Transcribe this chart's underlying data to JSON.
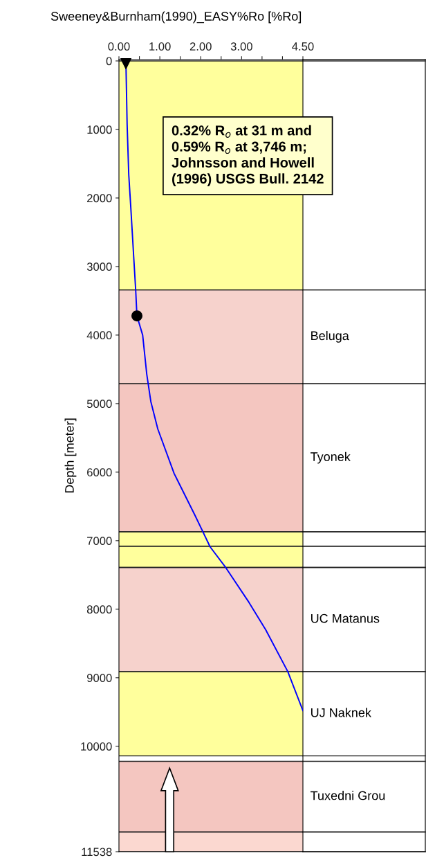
{
  "chart_data": {
    "type": "line",
    "title": "Sweeney&Burnham(1990)_EASY%Ro [%Ro]",
    "ylabel": "Depth [meter]",
    "xlim": [
      0,
      4.5
    ],
    "xticks": [
      {
        "value": 0,
        "label": "0.00"
      },
      {
        "value": 0.5,
        "label": null
      },
      {
        "value": 1,
        "label": "1.00"
      },
      {
        "value": 1.5,
        "label": null
      },
      {
        "value": 2,
        "label": "2.00"
      },
      {
        "value": 2.5,
        "label": null
      },
      {
        "value": 3,
        "label": "3.00"
      },
      {
        "value": 3.5,
        "label": null
      },
      {
        "value": 4,
        "label": null
      },
      {
        "value": 4.5,
        "label": "4.50"
      }
    ],
    "ylim": [
      11538,
      -20
    ],
    "yticks": [
      0,
      1000,
      2000,
      3000,
      4000,
      5000,
      6000,
      7000,
      8000,
      9000,
      10000,
      11538
    ],
    "grid": false,
    "series": [
      {
        "color": "#0000ff",
        "marker": "none",
        "x": [
          0.17,
          0.2,
          0.24,
          0.29,
          0.37,
          0.41,
          0.44,
          0.58,
          0.68,
          0.78,
          0.95,
          1.35,
          1.86,
          2.23,
          2.61,
          3.18,
          3.59,
          4.13,
          4.5
        ],
        "values": [
          0,
          930,
          1660,
          2140,
          2950,
          3350,
          3720,
          4000,
          4570,
          4970,
          5370,
          6020,
          6630,
          7090,
          7390,
          7900,
          8300,
          8910,
          9480
        ]
      },
      {
        "type": "scatter",
        "color": "#000000",
        "marker": "triangle",
        "x": [
          0.17
        ],
        "values": [
          40
        ]
      },
      {
        "type": "scatter",
        "color": "#000000",
        "marker": "circle",
        "x": [
          0.44
        ],
        "values": [
          3720
        ]
      }
    ],
    "bands": [
      {
        "axis": "y",
        "from": 0,
        "to": 3340,
        "color": "#ffff9c"
      },
      {
        "axis": "y",
        "from": 3340,
        "to": 4710,
        "color": "#f6d2cc",
        "label": "Beluga"
      },
      {
        "axis": "y",
        "from": 4710,
        "to": 6870,
        "color": "#f4c6c0",
        "label": "Tyonek"
      },
      {
        "axis": "y",
        "from": 6870,
        "to": 7080,
        "color": "#ffff9c"
      },
      {
        "axis": "y",
        "from": 7080,
        "to": 7390,
        "color": "#ffff9c"
      },
      {
        "axis": "y",
        "from": 7390,
        "to": 8910,
        "color": "#f6d2cc",
        "label": "UC Matanus"
      },
      {
        "axis": "y",
        "from": 8910,
        "to": 10140,
        "color": "#ffff9c",
        "label": "UJ Naknek"
      },
      {
        "axis": "y",
        "from": 10220,
        "to": 11250,
        "color": "#f4c6c0",
        "label": "Tuxedni Grou"
      },
      {
        "axis": "y",
        "from": 11250,
        "to": 11538,
        "color": "#fbd8d0"
      }
    ],
    "annotations": [
      "0.32% R$_{o}$ at 31 m and\n0.59% R$_{o}$ at 3,746 m;\nJohnsson and Howell\n(1996) USGS Bull. 2142"
    ]
  }
}
